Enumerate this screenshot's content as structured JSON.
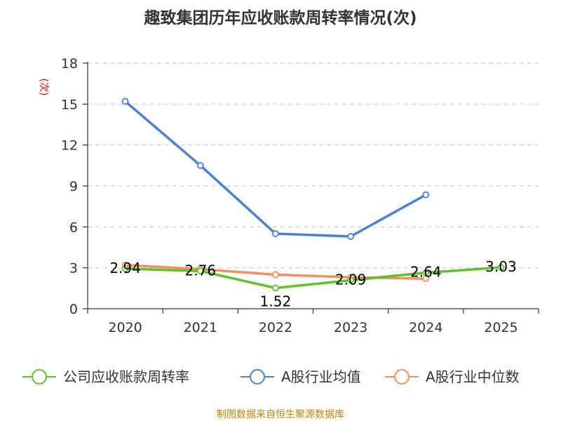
{
  "chart_data": {
    "type": "line",
    "title": "趣致集团历年应收账款周转率情况(次)",
    "ylabel": "(次)",
    "categories": [
      "2020",
      "2021",
      "2022",
      "2023",
      "2024",
      "2025"
    ],
    "yticks": [
      0,
      3,
      6,
      9,
      12,
      15,
      18
    ],
    "ylim": [
      0,
      18
    ],
    "grid": "horizontal-dashed",
    "legend_position": "bottom",
    "series": [
      {
        "name": "公司应收账款周转率",
        "color": "#5ec22c",
        "values": [
          2.94,
          2.76,
          1.52,
          2.09,
          2.64,
          3.03
        ],
        "labels": [
          "2.94",
          "2.76",
          "1.52",
          "2.09",
          "2.64",
          "3.03"
        ]
      },
      {
        "name": "A股行业均值",
        "color": "#4a7fdc",
        "values": [
          15.2,
          10.5,
          5.5,
          5.3,
          8.35,
          null
        ]
      },
      {
        "name": "A股行业中位数",
        "color": "#f39060",
        "values": [
          3.2,
          2.9,
          2.5,
          2.3,
          2.2,
          null
        ]
      }
    ]
  },
  "footer": {
    "source": "制图数据来自恒生聚源数据库"
  }
}
